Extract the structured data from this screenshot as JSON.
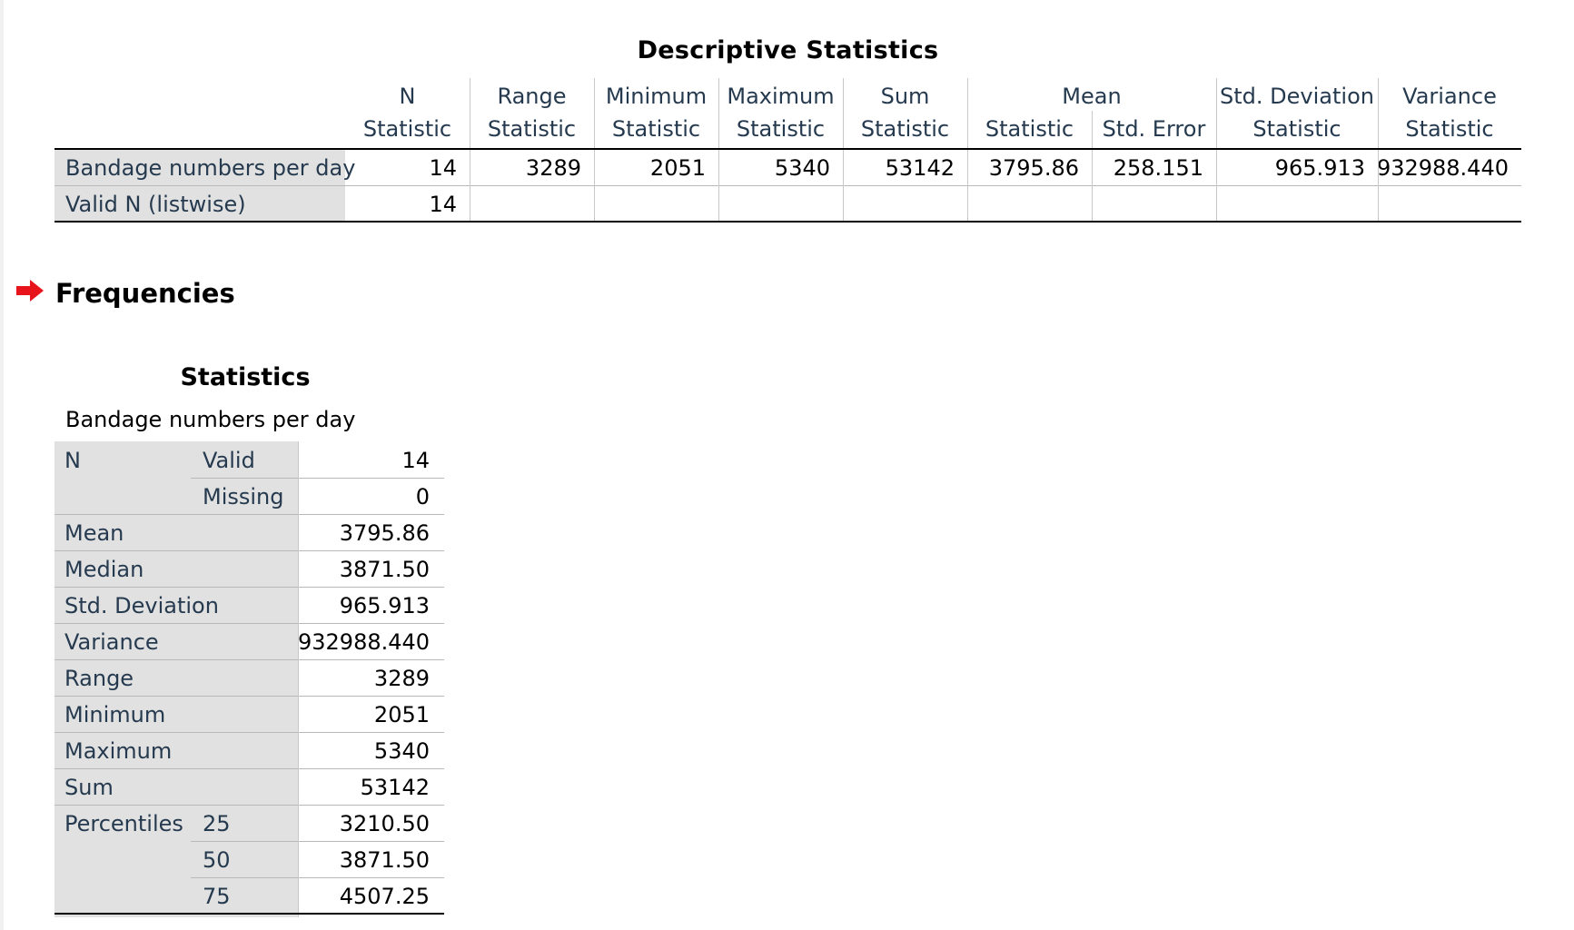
{
  "descriptive": {
    "title": "Descriptive Statistics",
    "headers": {
      "n": "N",
      "range": "Range",
      "minimum": "Minimum",
      "maximum": "Maximum",
      "sum": "Sum",
      "mean": "Mean",
      "std_deviation": "Std. Deviation",
      "variance": "Variance"
    },
    "subheaders": {
      "statistic": "Statistic",
      "std_error": "Std. Error"
    },
    "rows": [
      {
        "label": "Bandage numbers per day",
        "n": "14",
        "range": "3289",
        "minimum": "2051",
        "maximum": "5340",
        "sum": "53142",
        "mean_statistic": "3795.86",
        "mean_std_error": "258.151",
        "std_deviation": "965.913",
        "variance": "932988.440"
      },
      {
        "label": "Valid N (listwise)",
        "n": "14"
      }
    ]
  },
  "frequencies": {
    "title": "Frequencies",
    "arrow_color": "#e8141c",
    "statistics_table": {
      "title": "Statistics",
      "variable": "Bandage numbers per day",
      "n_label": "N",
      "valid_label": "Valid",
      "valid_value": "14",
      "missing_label": "Missing",
      "missing_value": "0",
      "mean_label": "Mean",
      "mean_value": "3795.86",
      "median_label": "Median",
      "median_value": "3871.50",
      "std_label": "Std. Deviation",
      "std_value": "965.913",
      "variance_label": "Variance",
      "variance_value": "932988.440",
      "range_label": "Range",
      "range_value": "3289",
      "minimum_label": "Minimum",
      "minimum_value": "2051",
      "maximum_label": "Maximum",
      "maximum_value": "5340",
      "sum_label": "Sum",
      "sum_value": "53142",
      "percentiles_label": "Percentiles",
      "p25_label": "25",
      "p25_value": "3210.50",
      "p50_label": "50",
      "p50_value": "3871.50",
      "p75_label": "75",
      "p75_value": "4507.25"
    }
  }
}
